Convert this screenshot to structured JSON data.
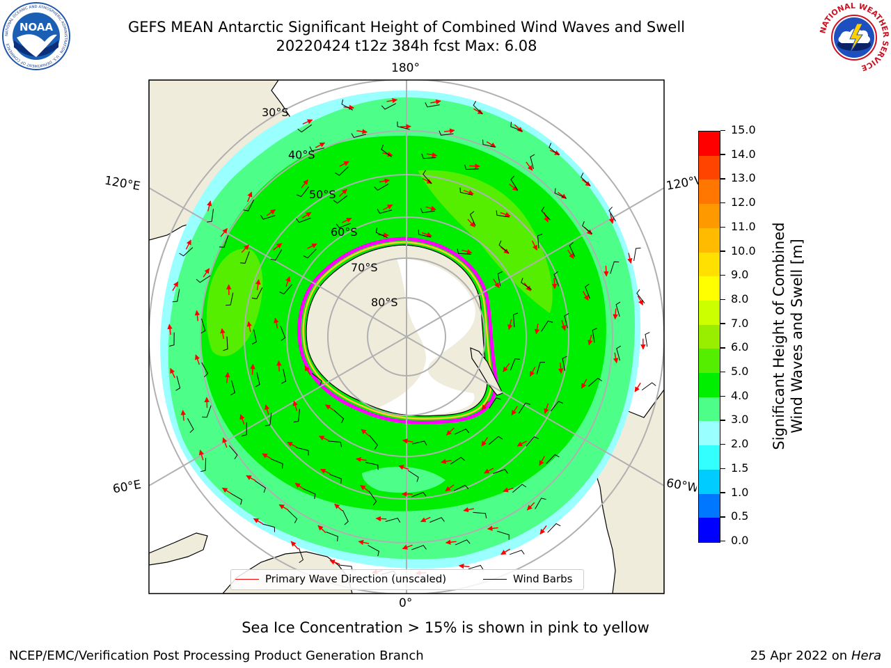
{
  "header": {
    "title_line1": "GEFS MEAN Antarctic Significant Height of Combined Wind Waves and Swell",
    "title_line2": "20220424 t12z 384h fcst   Max: 6.08"
  },
  "logos": {
    "left": {
      "icon": "noaa-logo",
      "text": "NOAA",
      "ring_text": "NATIONAL OCEANIC AND ATMOSPHERIC ADMINISTRATION · U.S. DEPARTMENT OF COMMERCE"
    },
    "right": {
      "icon": "national-weather-service-logo",
      "ring_text": "NATIONAL WEATHER SERVICE"
    }
  },
  "map": {
    "projection": "south-polar-stereographic",
    "longitude_labels": {
      "top": "180°",
      "bottom": "0°",
      "upper_left": "120°E",
      "lower_left": "60°E",
      "upper_right": "120°W",
      "lower_right": "60°W"
    },
    "latitude_labels": [
      "30°S",
      "40°S",
      "50°S",
      "60°S",
      "70°S",
      "80°S"
    ],
    "max_value": 6.08,
    "colors": {
      "land": "#efecdc",
      "ice_shelf": "#ffffff",
      "sea_ice_edge": [
        "#ff00ff",
        "#ff9999",
        "#ffcc33"
      ],
      "wave_arrow": "#ff0000",
      "wind_barb": "#000000",
      "grid": "#b0b0b0"
    }
  },
  "legend": {
    "items": [
      {
        "label": "Primary Wave Direction (unscaled)",
        "color": "#ff0000"
      },
      {
        "label": "Wind Barbs",
        "color": "#000000"
      }
    ]
  },
  "colorbar": {
    "label_line1": "Significant Height of Combined",
    "label_line2": "Wind Waves and Swell [m]",
    "ticks": [
      "0.0",
      "0.5",
      "1.0",
      "1.5",
      "2.0",
      "3.0",
      "4.0",
      "5.0",
      "6.0",
      "7.0",
      "8.0",
      "9.0",
      "10.0",
      "11.0",
      "12.0",
      "13.0",
      "14.0",
      "15.0"
    ],
    "colors": [
      "#0000ff",
      "#0077ff",
      "#00ccff",
      "#33ffff",
      "#99ffff",
      "#4dff88",
      "#00ee00",
      "#55ee00",
      "#99ee00",
      "#ccff00",
      "#ffff00",
      "#ffe000",
      "#ffbb00",
      "#ff9900",
      "#ff7700",
      "#ff4400",
      "#ff0000"
    ]
  },
  "footnote": "Sea Ice Concentration > 15% is shown in pink to yellow",
  "footer": {
    "left": "NCEP/EMC/Verification Post Processing Product Generation Branch",
    "right_date": "25 Apr 2022 on ",
    "right_host": "Hera"
  }
}
